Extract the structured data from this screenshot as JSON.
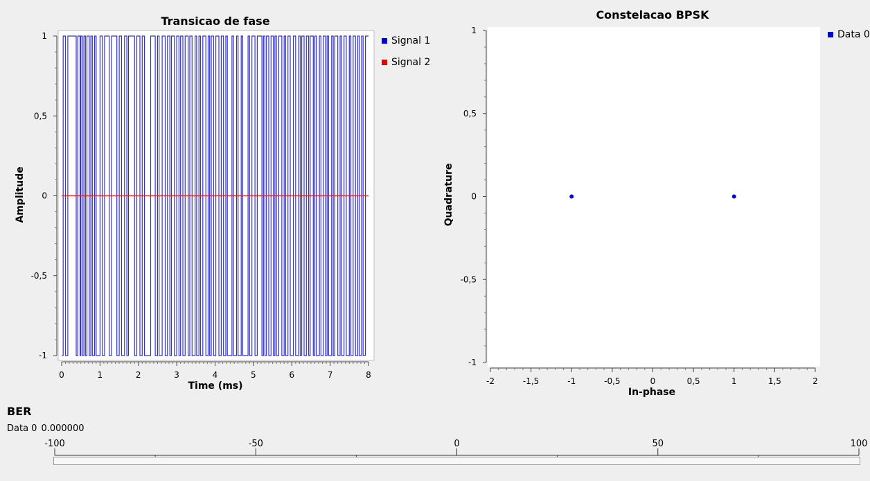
{
  "chart_data": [
    {
      "type": "line",
      "title": "Transicao de fase",
      "xlabel": "Time (ms)",
      "ylabel": "Amplitude",
      "xlim": [
        0,
        8
      ],
      "ylim": [
        -1,
        1
      ],
      "x_ticks": [
        "0",
        "1",
        "2",
        "3",
        "4",
        "5",
        "6",
        "7",
        "8"
      ],
      "y_ticks": [
        "1",
        "0,5",
        "0",
        "-0,5",
        "-1"
      ],
      "grid": false,
      "legend": "right",
      "series": [
        {
          "name": "Signal 1",
          "color": "#3333cc",
          "step_x": [
            0.0,
            0.04,
            0.1,
            0.16,
            0.38,
            0.42,
            0.48,
            0.5,
            0.54,
            0.58,
            0.62,
            0.66,
            0.72,
            0.76,
            0.8,
            0.86,
            0.9,
            1.0,
            1.06,
            1.12,
            1.24,
            1.3,
            1.44,
            1.5,
            1.56,
            1.64,
            1.7,
            1.74,
            1.9,
            1.96,
            2.04,
            2.1,
            2.16,
            2.32,
            2.44,
            2.5,
            2.54,
            2.62,
            2.7,
            2.76,
            2.82,
            2.86,
            2.94,
            3.0,
            3.06,
            3.1,
            3.16,
            3.22,
            3.3,
            3.34,
            3.4,
            3.48,
            3.52,
            3.58,
            3.62,
            3.68,
            3.76,
            3.82,
            3.86,
            3.9,
            3.96,
            4.02,
            4.1,
            4.16,
            4.22,
            4.28,
            4.32,
            4.44,
            4.48,
            4.56,
            4.6,
            4.68,
            4.72,
            4.86,
            4.9,
            4.96,
            5.04,
            5.1,
            5.22,
            5.26,
            5.3,
            5.34,
            5.4,
            5.46,
            5.52,
            5.56,
            5.6,
            5.66,
            5.74,
            5.8,
            5.84,
            5.9,
            5.96,
            6.04,
            6.1,
            6.18,
            6.22,
            6.26,
            6.32,
            6.38,
            6.44,
            6.48,
            6.56,
            6.6,
            6.64,
            6.72,
            6.76,
            6.82,
            6.88,
            6.92,
            6.96,
            7.04,
            7.08,
            7.12,
            7.2,
            7.26,
            7.3,
            7.36,
            7.42,
            7.5,
            7.54,
            7.6,
            7.66,
            7.72,
            7.76,
            7.82,
            7.86,
            7.92,
            8.0
          ],
          "step_y": [
            -1,
            1,
            -1,
            1,
            -1,
            1,
            -1,
            1,
            -1,
            1,
            -1,
            1,
            -1,
            1,
            -1,
            1,
            -1,
            1,
            -1,
            1,
            -1,
            1,
            -1,
            1,
            -1,
            1,
            -1,
            1,
            -1,
            1,
            -1,
            1,
            -1,
            1,
            -1,
            1,
            -1,
            1,
            -1,
            1,
            -1,
            1,
            -1,
            1,
            -1,
            1,
            -1,
            1,
            -1,
            1,
            -1,
            1,
            -1,
            1,
            -1,
            1,
            -1,
            1,
            -1,
            1,
            -1,
            1,
            -1,
            1,
            -1,
            1,
            -1,
            1,
            -1,
            1,
            -1,
            1,
            -1,
            1,
            -1,
            1,
            -1,
            1,
            -1,
            1,
            -1,
            1,
            -1,
            1,
            -1,
            1,
            -1,
            1,
            -1,
            1,
            -1,
            1,
            -1,
            1,
            -1,
            1,
            -1,
            1,
            -1,
            1,
            -1,
            1,
            -1,
            1,
            -1,
            1,
            -1,
            1,
            -1,
            1,
            -1,
            1,
            -1,
            1,
            -1,
            1,
            -1,
            1,
            -1,
            1,
            -1,
            1,
            -1,
            1,
            -1,
            1,
            -1,
            1,
            -1,
            1,
            -1
          ]
        },
        {
          "name": "Signal 2",
          "color": "#e02020",
          "x": [
            0,
            8
          ],
          "y": [
            0,
            0
          ]
        }
      ]
    },
    {
      "type": "scatter",
      "title": "Constelacao BPSK",
      "xlabel": "In-phase",
      "ylabel": "Quadrature",
      "xlim": [
        -2,
        2
      ],
      "ylim": [
        -1,
        1
      ],
      "x_ticks": [
        "-2",
        "-1,5",
        "-1",
        "-0,5",
        "0",
        "0,5",
        "1",
        "1,5",
        "2"
      ],
      "y_ticks": [
        "1",
        "0,5",
        "0",
        "-0,5",
        "-1"
      ],
      "grid": false,
      "legend": "right",
      "series": [
        {
          "name": "Data 0",
          "color": "#0000ee",
          "points": [
            [
              -1,
              0
            ],
            [
              1,
              0
            ]
          ]
        }
      ]
    }
  ],
  "ber": {
    "title": "BER",
    "series_label": "Data 0",
    "value_text": "0.000000",
    "value": 0,
    "range": [
      -100,
      100
    ],
    "tick_labels": [
      "-100",
      "-50",
      "0",
      "50",
      "100"
    ],
    "fill_color": "#3a6fd8"
  }
}
